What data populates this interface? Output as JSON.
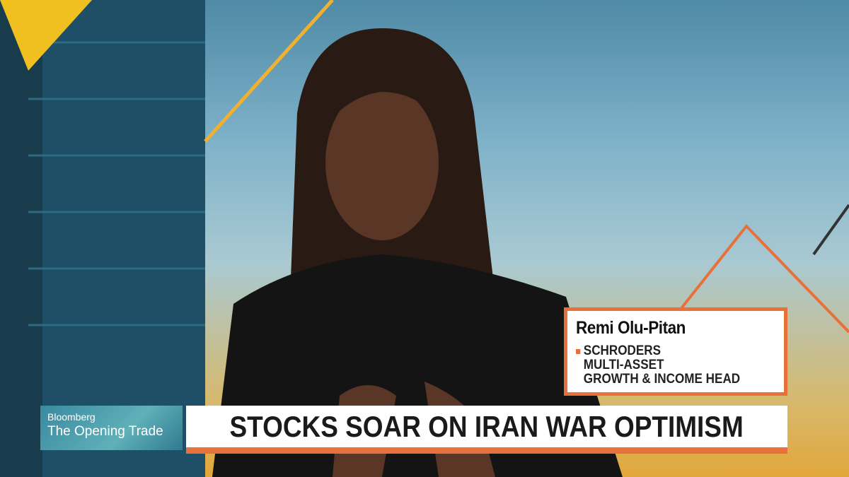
{
  "lower_third": {
    "name": "Remi Olu-Pitan",
    "title_lines": [
      "SCHRODERS",
      "MULTI-ASSET",
      "GROWTH & INCOME HEAD"
    ],
    "accent_color": "#e8703a"
  },
  "show": {
    "brand": "Bloomberg",
    "name": "The Opening Trade"
  },
  "headline": "STOCKS SOAR ON IRAN WAR OPTIMISM"
}
